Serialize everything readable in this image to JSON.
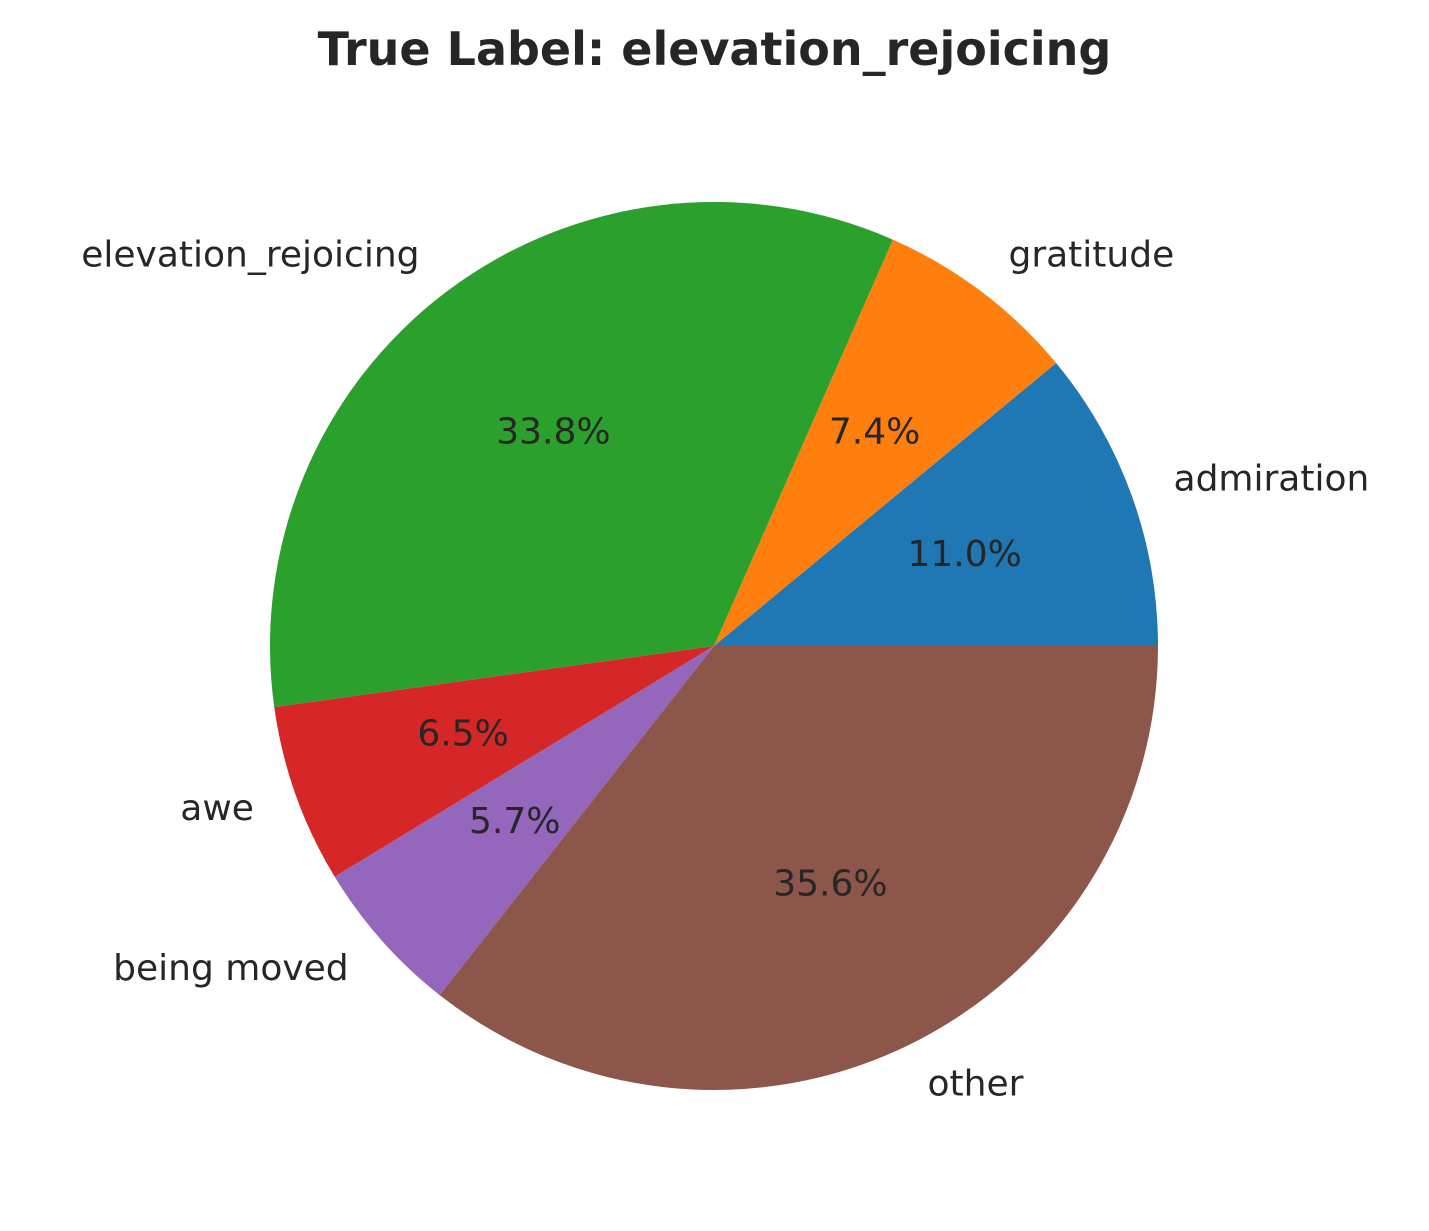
{
  "chart_data": {
    "type": "pie",
    "title": "True Label: elevation_rejoicing",
    "categories": [
      "admiration",
      "gratitude",
      "elevation_rejoicing",
      "awe",
      "being moved",
      "other"
    ],
    "values": [
      11.0,
      7.4,
      33.8,
      6.5,
      5.7,
      35.6
    ],
    "pct_labels": [
      "11.0%",
      "7.4%",
      "33.8%",
      "6.5%",
      "5.7%",
      "35.6%"
    ],
    "colors": [
      "#1f77b4",
      "#ff7f0e",
      "#2ca02c",
      "#d62728",
      "#9467bd",
      "#8c564b"
    ],
    "start_angle_deg": 0,
    "direction": "counterclockwise"
  }
}
